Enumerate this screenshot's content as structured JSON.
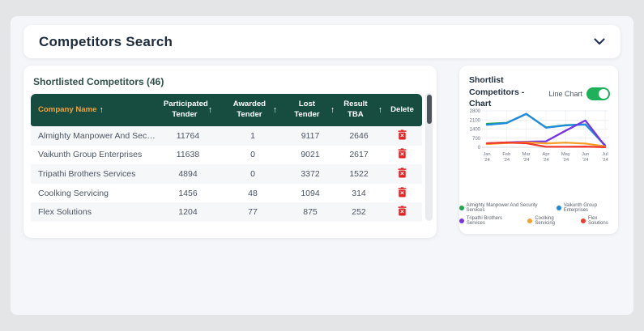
{
  "header": {
    "title": "Competitors Search"
  },
  "icons": {
    "sort_asc": "↑"
  },
  "table_card": {
    "title": "Shortlisted Competitors (46)",
    "columns": [
      {
        "label": "Company Name",
        "sortable": true
      },
      {
        "label": "Participated Tender",
        "sortable": true
      },
      {
        "label": "Awarded Tender",
        "sortable": true
      },
      {
        "label": "Lost Tender",
        "sortable": true
      },
      {
        "label": "Result TBA",
        "sortable": true
      },
      {
        "label": "Delete",
        "sortable": false
      }
    ],
    "rows": [
      {
        "company": "Almighty Manpower And Security...",
        "participated": "11764",
        "awarded": "1",
        "lost": "9117",
        "result_tba": "2646"
      },
      {
        "company": "Vaikunth Group Enterprises",
        "participated": "11638",
        "awarded": "0",
        "lost": "9021",
        "result_tba": "2617"
      },
      {
        "company": "Tripathi Brothers Services",
        "participated": "4894",
        "awarded": "0",
        "lost": "3372",
        "result_tba": "1522"
      },
      {
        "company": "Coolking Servicing",
        "participated": "1456",
        "awarded": "48",
        "lost": "1094",
        "result_tba": "314"
      },
      {
        "company": "Flex Solutions",
        "participated": "1204",
        "awarded": "77",
        "lost": "875",
        "result_tba": "252"
      }
    ]
  },
  "chart_card": {
    "title": "Shortlist Competitors - Chart",
    "toggle_label": "Line Chart",
    "toggle_on": true
  },
  "colors": {
    "accent_green_header": "#174c41",
    "column_highlight": "#efa33c",
    "toggle_on": "#1fb05a",
    "delete_red": "#e32222",
    "panel_bg": "#f4f6f9"
  },
  "chart_data": {
    "type": "line",
    "x": [
      "Jan '24",
      "Feb '24",
      "Mar '24",
      "Apr '24",
      "May '24",
      "Jun '24",
      "Jul '24"
    ],
    "ylim": [
      0,
      2800
    ],
    "yticks": [
      0,
      700,
      1400,
      2100,
      2800
    ],
    "grid": "on",
    "legend_position": "bottom",
    "legend_row_split": [
      2,
      3
    ],
    "series": [
      {
        "name": "Almighty Manpower And Security Services",
        "color": "#21a64e",
        "values": [
          1800,
          1880,
          2560,
          1520,
          1700,
          1760,
          140
        ]
      },
      {
        "name": "Vaikunth Group Enterprises",
        "color": "#1f8be0",
        "values": [
          1730,
          1860,
          2570,
          1510,
          1690,
          1750,
          160
        ]
      },
      {
        "name": "Tripathi Brothers Services",
        "color": "#7733e6",
        "values": [
          300,
          370,
          430,
          460,
          1280,
          2060,
          90
        ]
      },
      {
        "name": "Coolking Servicing",
        "color": "#f5a02c",
        "values": [
          250,
          330,
          390,
          300,
          360,
          290,
          60
        ]
      },
      {
        "name": "Flex Solutions",
        "color": "#ef3a2d",
        "values": [
          310,
          370,
          310,
          40,
          40,
          50,
          10
        ]
      }
    ]
  }
}
